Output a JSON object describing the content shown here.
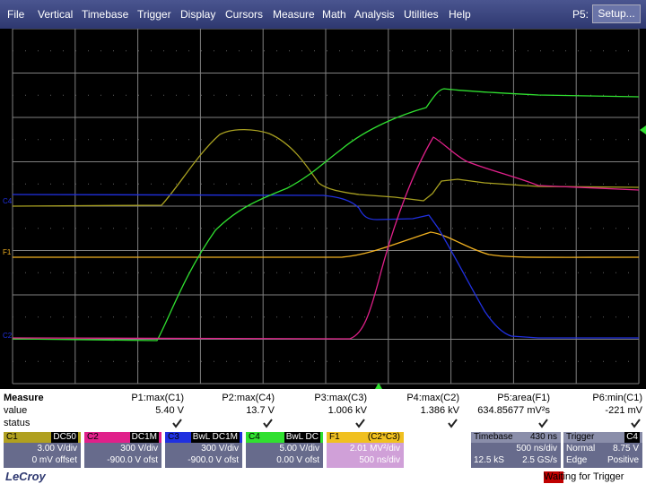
{
  "menu": {
    "items": [
      "File",
      "Vertical",
      "Timebase",
      "Trigger",
      "Display",
      "Cursors",
      "Measure",
      "Math",
      "Analysis",
      "Utilities",
      "Help"
    ],
    "right_label": "P5:",
    "setup_button": "Setup..."
  },
  "screen": {
    "markers": [
      {
        "label": "C4",
        "color": "#2030e0"
      },
      {
        "label": "F1",
        "color": "#f0b020"
      },
      {
        "label": "C2",
        "color": "#2030e0"
      }
    ]
  },
  "measure": {
    "row_labels": [
      "Measure",
      "value",
      "status"
    ],
    "params": [
      {
        "name": "P1:max(C1)",
        "value": "5.40 V"
      },
      {
        "name": "P2:max(C4)",
        "value": "13.7 V"
      },
      {
        "name": "P3:max(C3)",
        "value": "1.006 kV"
      },
      {
        "name": "P4:max(C2)",
        "value": "1.386 kV"
      },
      {
        "name": "P5:area(F1)",
        "value": "634.85677 mV²s"
      },
      {
        "name": "P6:min(C1)",
        "value": "-221 mV"
      }
    ]
  },
  "channels": [
    {
      "name": "C1",
      "tags": "DC50",
      "color": "#b0a020",
      "lines": [
        "3.00 V/div",
        "0 mV offset"
      ]
    },
    {
      "name": "C2",
      "tags": "DC1M",
      "color": "#e0208a",
      "lines": [
        "300 V/div",
        "-900.0 V ofst"
      ]
    },
    {
      "name": "C3",
      "tags": "BwL DC1M",
      "color": "#2030e0",
      "lines": [
        "300 V/div",
        "-900.0 V ofst"
      ]
    },
    {
      "name": "C4",
      "tags": "BwL DC",
      "color": "#30e030",
      "lines": [
        "5.00 V/div",
        "0.00 V ofst"
      ]
    }
  ],
  "math": {
    "name": "F1",
    "source": "(C2*C3)",
    "lines": [
      "2.01 MV²/div",
      "500 ns/div"
    ]
  },
  "timebase": {
    "title": "Timebase",
    "delay": "430 ns",
    "per_div": "500 ns/div",
    "samples": "12.5 kS",
    "rate": "2.5 GS/s"
  },
  "trigger": {
    "title": "Trigger",
    "source": "C4",
    "mode": "Normal",
    "level": "8.75 V",
    "type": "Edge",
    "slope": "Positive"
  },
  "footer": {
    "brand": "LeCroy",
    "status": "Waiting for Trigger"
  }
}
